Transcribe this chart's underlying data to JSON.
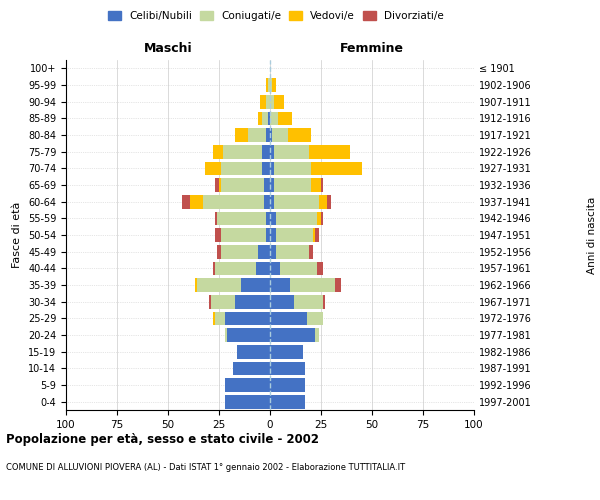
{
  "age_groups": [
    "0-4",
    "5-9",
    "10-14",
    "15-19",
    "20-24",
    "25-29",
    "30-34",
    "35-39",
    "40-44",
    "45-49",
    "50-54",
    "55-59",
    "60-64",
    "65-69",
    "70-74",
    "75-79",
    "80-84",
    "85-89",
    "90-94",
    "95-99",
    "100+"
  ],
  "birth_years": [
    "1997-2001",
    "1992-1996",
    "1987-1991",
    "1982-1986",
    "1977-1981",
    "1972-1976",
    "1967-1971",
    "1962-1966",
    "1957-1961",
    "1952-1956",
    "1947-1951",
    "1942-1946",
    "1937-1941",
    "1932-1936",
    "1927-1931",
    "1922-1926",
    "1917-1921",
    "1912-1916",
    "1907-1911",
    "1902-1906",
    "≤ 1901"
  ],
  "male_celibi": [
    22,
    22,
    18,
    16,
    21,
    22,
    17,
    14,
    7,
    6,
    2,
    2,
    3,
    3,
    4,
    4,
    2,
    1,
    0,
    0,
    0
  ],
  "male_coniugati": [
    0,
    0,
    0,
    0,
    1,
    5,
    12,
    22,
    20,
    18,
    22,
    24,
    30,
    21,
    20,
    19,
    9,
    3,
    2,
    1,
    0
  ],
  "male_vedovi": [
    0,
    0,
    0,
    0,
    0,
    1,
    0,
    1,
    0,
    0,
    0,
    0,
    6,
    1,
    8,
    5,
    6,
    2,
    3,
    1,
    0
  ],
  "male_divorziati": [
    0,
    0,
    0,
    0,
    0,
    0,
    1,
    0,
    1,
    2,
    3,
    1,
    4,
    2,
    0,
    0,
    0,
    0,
    0,
    0,
    0
  ],
  "female_celibi": [
    17,
    17,
    17,
    16,
    22,
    18,
    12,
    10,
    5,
    3,
    3,
    3,
    2,
    2,
    2,
    2,
    1,
    0,
    0,
    0,
    0
  ],
  "female_coniugati": [
    0,
    0,
    0,
    0,
    2,
    8,
    14,
    22,
    18,
    16,
    18,
    20,
    22,
    18,
    18,
    17,
    8,
    4,
    2,
    1,
    0
  ],
  "female_vedovi": [
    0,
    0,
    0,
    0,
    0,
    0,
    0,
    0,
    0,
    0,
    1,
    2,
    4,
    5,
    25,
    20,
    11,
    7,
    5,
    2,
    0
  ],
  "female_divorziati": [
    0,
    0,
    0,
    0,
    0,
    0,
    1,
    3,
    3,
    2,
    2,
    1,
    2,
    1,
    0,
    0,
    0,
    0,
    0,
    0,
    0
  ],
  "colors": {
    "celibi": "#4472c4",
    "coniugati": "#c5d9a0",
    "vedovi": "#ffc000",
    "divorziati": "#c0504d"
  },
  "xlim": 100,
  "title1": "Popolazione per età, sesso e stato civile - 2002",
  "title2": "COMUNE DI ALLUVIONI PIOVERA (AL) - Dati ISTAT 1° gennaio 2002 - Elaborazione TUTTITALIA.IT",
  "ylabel": "Fasce di età",
  "ylabel_right": "Anni di nascita",
  "label_maschi": "Maschi",
  "label_femmine": "Femmine",
  "legend_celibi": "Celibi/Nubili",
  "legend_coniugati": "Coniugati/e",
  "legend_vedovi": "Vedovi/e",
  "legend_divorziati": "Divorziati/e"
}
